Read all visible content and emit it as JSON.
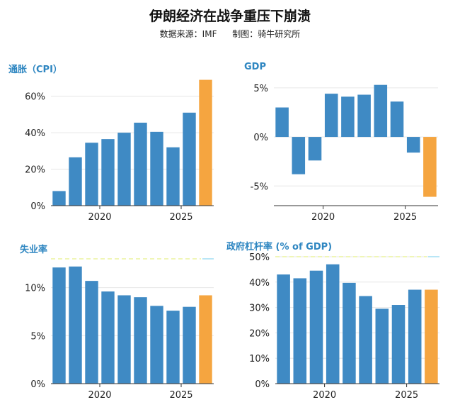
{
  "header": {
    "title": "伊朗经济在战争重压下崩溃",
    "source": "数据来源：IMF",
    "producer": "制图：骑牛研究所"
  },
  "colors": {
    "historic": "#3f8ac4",
    "projection": "#f5a540",
    "grid": "#e6e6e6",
    "axis": "#333333",
    "title": "#2e86c1"
  },
  "chart_data": [
    {
      "type": "bar",
      "title": "通胀（CPI）",
      "x": [
        2017,
        2018,
        2019,
        2020,
        2021,
        2022,
        2023,
        2024,
        2025,
        2026
      ],
      "values": [
        8,
        26.5,
        34.5,
        36.5,
        40,
        45.5,
        40.5,
        32,
        51,
        69
      ],
      "projection_index": 9,
      "xticks": [
        2020,
        2025
      ],
      "yticks": [
        0,
        20,
        40,
        60
      ],
      "tick_labels": [
        "0%",
        "20%",
        "40%",
        "60%"
      ],
      "ylim": [
        0,
        70
      ],
      "grid": true
    },
    {
      "type": "bar",
      "title": "GDP",
      "x": [
        2017,
        2018,
        2019,
        2020,
        2021,
        2022,
        2023,
        2024,
        2025,
        2026
      ],
      "values": [
        3,
        -3.8,
        -2.4,
        4.4,
        4.1,
        4.3,
        5.3,
        3.6,
        -1.6,
        -6.1
      ],
      "projection_index": 9,
      "xticks": [
        2020,
        2025
      ],
      "yticks": [
        -5,
        0,
        5
      ],
      "tick_labels": [
        "-5%",
        "0%",
        "5%"
      ],
      "ylim": [
        -7,
        6
      ],
      "grid": true
    },
    {
      "type": "bar",
      "title": "失业率",
      "x": [
        2017,
        2018,
        2019,
        2020,
        2021,
        2022,
        2023,
        2024,
        2025,
        2026
      ],
      "values": [
        12.1,
        12.2,
        10.7,
        9.6,
        9.2,
        9,
        8.1,
        7.6,
        8,
        9.2
      ],
      "projection_index": 9,
      "xticks": [
        2020,
        2025
      ],
      "yticks": [
        0,
        5,
        10
      ],
      "tick_labels": [
        "0%",
        "5%",
        "10%"
      ],
      "ylim": [
        0,
        13
      ],
      "grid": true
    },
    {
      "type": "bar",
      "title": "政府杠杆率",
      "title_suffix": "(% of GDP)",
      "x": [
        2017,
        2018,
        2019,
        2020,
        2021,
        2022,
        2023,
        2024,
        2025,
        2026
      ],
      "values": [
        43,
        41.5,
        44.5,
        47,
        39.7,
        34.5,
        29.5,
        31,
        37,
        37
      ],
      "projection_index": 9,
      "xticks": [
        2020,
        2025
      ],
      "yticks": [
        0,
        10,
        20,
        30,
        40,
        50
      ],
      "tick_labels": [
        "0%",
        "10%",
        "20%",
        "30%",
        "40%",
        "50%"
      ],
      "ylim": [
        0,
        50
      ],
      "grid": true
    }
  ]
}
